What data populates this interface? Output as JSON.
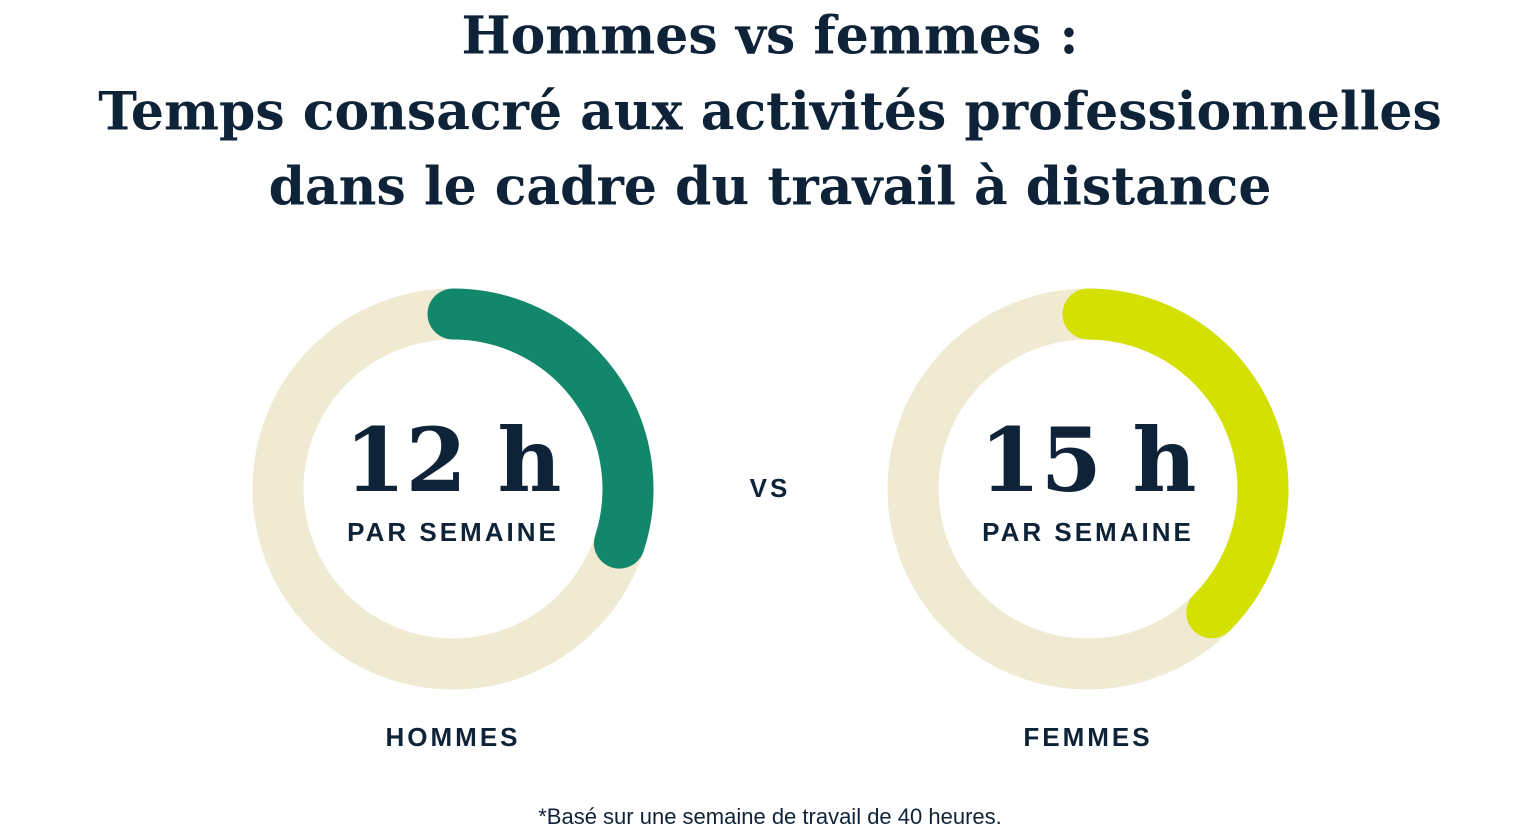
{
  "chart_data": {
    "type": "donut-gauge",
    "title": [
      "Hommes vs femmes :",
      "Temps consacré aux activités professionnelles",
      "dans le cadre du travail à distance"
    ],
    "categories": [
      "HOMMES",
      "FEMMES"
    ],
    "values": [
      12,
      15
    ],
    "value_labels": [
      "12 h",
      "15 h"
    ],
    "sublabel": "PAR SEMAINE",
    "separator": "VS",
    "colors": [
      "#12876b",
      "#d4e000"
    ],
    "track_color": "#f0ead2",
    "ylim": [
      0,
      40
    ],
    "footnote": "*Basé sur une semaine de travail de 40 heures."
  }
}
